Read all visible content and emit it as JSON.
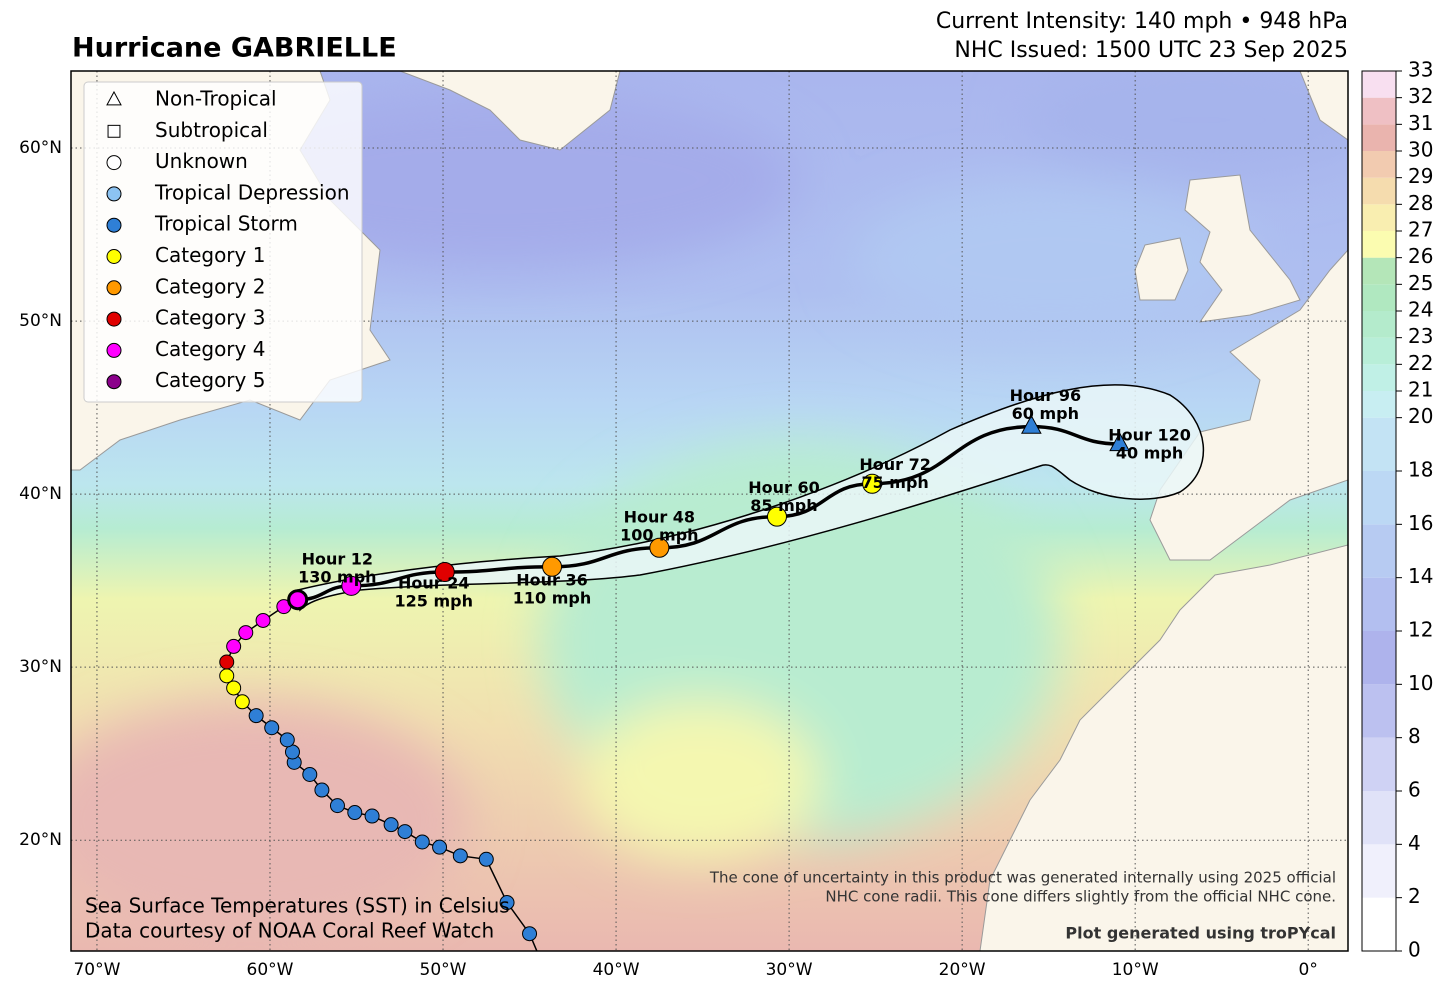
{
  "header": {
    "title": "Hurricane GABRIELLE",
    "intensity": "Current Intensity: 140 mph • 948 hPa",
    "issued": "NHC Issued: 1500 UTC 23 Sep 2025"
  },
  "map": {
    "xlim": [
      -71.5,
      2.3
    ],
    "ylim": [
      13.6,
      64.45
    ],
    "xticks": [
      {
        "value": -70,
        "label": "70°W"
      },
      {
        "value": -60,
        "label": "60°W"
      },
      {
        "value": -50,
        "label": "50°W"
      },
      {
        "value": -40,
        "label": "40°W"
      },
      {
        "value": -30,
        "label": "30°W"
      },
      {
        "value": -20,
        "label": "20°W"
      },
      {
        "value": -10,
        "label": "10°W"
      },
      {
        "value": 0,
        "label": "0°"
      }
    ],
    "yticks": [
      {
        "value": 20,
        "label": "20°N"
      },
      {
        "value": 30,
        "label": "30°N"
      },
      {
        "value": 40,
        "label": "40°N"
      },
      {
        "value": 50,
        "label": "50°N"
      },
      {
        "value": 60,
        "label": "60°N"
      }
    ],
    "grid": true
  },
  "legend": [
    {
      "label": "Non-Tropical",
      "marker": "triangle",
      "color": "#ffffff"
    },
    {
      "label": "Subtropical",
      "marker": "square",
      "color": "#ffffff"
    },
    {
      "label": "Unknown",
      "marker": "circle",
      "color": "#ffffff"
    },
    {
      "label": "Tropical Depression",
      "marker": "circle",
      "color": "#8cc3f2"
    },
    {
      "label": "Tropical Storm",
      "marker": "circle",
      "color": "#2f7fd6"
    },
    {
      "label": "Category 1",
      "marker": "circle",
      "color": "#ffff00"
    },
    {
      "label": "Category 2",
      "marker": "circle",
      "color": "#ff9900"
    },
    {
      "label": "Category 3",
      "marker": "circle",
      "color": "#e00000"
    },
    {
      "label": "Category 4",
      "marker": "circle",
      "color": "#ff00ff"
    },
    {
      "label": "Category 5",
      "marker": "circle",
      "color": "#8b008b"
    }
  ],
  "track": [
    {
      "lon": -45.0,
      "lat": 14.6,
      "cat": 4
    },
    {
      "lon": -46.3,
      "lat": 16.4,
      "cat": 4
    },
    {
      "lon": -47.5,
      "lat": 18.9,
      "cat": 4
    },
    {
      "lon": -49.0,
      "lat": 19.1,
      "cat": 4
    },
    {
      "lon": -50.2,
      "lat": 19.6,
      "cat": 4
    },
    {
      "lon": -51.2,
      "lat": 19.9,
      "cat": 4
    },
    {
      "lon": -52.2,
      "lat": 20.5,
      "cat": 4
    },
    {
      "lon": -53.0,
      "lat": 20.9,
      "cat": 4
    },
    {
      "lon": -54.1,
      "lat": 21.4,
      "cat": 4
    },
    {
      "lon": -55.1,
      "lat": 21.6,
      "cat": 4
    },
    {
      "lon": -56.1,
      "lat": 22.0,
      "cat": 4
    },
    {
      "lon": -57.0,
      "lat": 22.9,
      "cat": 4
    },
    {
      "lon": -57.7,
      "lat": 23.8,
      "cat": 4
    },
    {
      "lon": -58.6,
      "lat": 24.5,
      "cat": 4
    },
    {
      "lon": -58.7,
      "lat": 25.1,
      "cat": 4
    },
    {
      "lon": -59.0,
      "lat": 25.8,
      "cat": 4
    },
    {
      "lon": -59.9,
      "lat": 26.5,
      "cat": 4
    },
    {
      "lon": -60.8,
      "lat": 27.2,
      "cat": 4
    },
    {
      "lon": -61.6,
      "lat": 28.0,
      "cat": 5
    },
    {
      "lon": -62.1,
      "lat": 28.8,
      "cat": 5
    },
    {
      "lon": -62.5,
      "lat": 29.5,
      "cat": 5
    },
    {
      "lon": -62.5,
      "lat": 30.3,
      "cat": 7
    },
    {
      "lon": -62.1,
      "lat": 31.2,
      "cat": 8
    },
    {
      "lon": -61.4,
      "lat": 32.0,
      "cat": 8
    },
    {
      "lon": -60.4,
      "lat": 32.7,
      "cat": 8
    },
    {
      "lon": -59.2,
      "lat": 33.5,
      "cat": 8
    },
    {
      "lon": -58.4,
      "lat": 33.9,
      "cat": 8
    }
  ],
  "forecast": [
    {
      "hour": "Hour 12",
      "wind": "130 mph",
      "lon": -55.3,
      "lat": 34.7,
      "cat": 8,
      "marker": "circle"
    },
    {
      "hour": "Hour 24",
      "wind": "125 mph",
      "lon": -49.9,
      "lat": 35.5,
      "cat": 7,
      "marker": "circle"
    },
    {
      "hour": "Hour 36",
      "wind": "110 mph",
      "lon": -43.7,
      "lat": 35.8,
      "cat": 6,
      "marker": "circle"
    },
    {
      "hour": "Hour 48",
      "wind": "100 mph",
      "lon": -37.5,
      "lat": 36.9,
      "cat": 6,
      "marker": "circle"
    },
    {
      "hour": "Hour 60",
      "wind": "85 mph",
      "lon": -30.7,
      "lat": 38.7,
      "cat": 5,
      "marker": "circle"
    },
    {
      "hour": "Hour 72",
      "wind": "75 mph",
      "lon": -25.2,
      "lat": 40.6,
      "cat": 5,
      "marker": "circle"
    },
    {
      "hour": "Hour 96",
      "wind": "60 mph",
      "lon": -16.0,
      "lat": 43.9,
      "cat": 4,
      "marker": "triangle"
    },
    {
      "hour": "Hour 120",
      "wind": "40 mph",
      "lon": -10.9,
      "lat": 42.9,
      "cat": 4,
      "marker": "triangle"
    }
  ],
  "colorbar": {
    "ticks": [
      0,
      2,
      4,
      6,
      8,
      10,
      12,
      14,
      16,
      18,
      20,
      21,
      22,
      23,
      24,
      25,
      26,
      27,
      28,
      29,
      30,
      31,
      32,
      33
    ],
    "colors": [
      "#ffffff",
      "#f0f0fc",
      "#e0e2f8",
      "#cfd2f4",
      "#bcc1f0",
      "#aeb3ec",
      "#b3bff0",
      "#b7cbf2",
      "#bcd8f4",
      "#c3e3f4",
      "#c8eef2",
      "#c0f0e6",
      "#b8eed8",
      "#b4ebcc",
      "#b0e8c0",
      "#b4e6b8",
      "#fbfcb0",
      "#f9eeb0",
      "#f5dcae",
      "#f2cbb0",
      "#eab4ae",
      "#efc0c4",
      "#f8dff0"
    ]
  },
  "notes": {
    "sst": "Sea Surface Temperatures (SST) in Celsius",
    "source": "Data courtesy of NOAA Coral Reef Watch",
    "cone1": "The cone of uncertainty in this product was generated internally using 2025 official",
    "cone2": "NHC cone radii. This cone differs slightly from the official NHC cone.",
    "credit": "Plot generated using troPYcal"
  }
}
